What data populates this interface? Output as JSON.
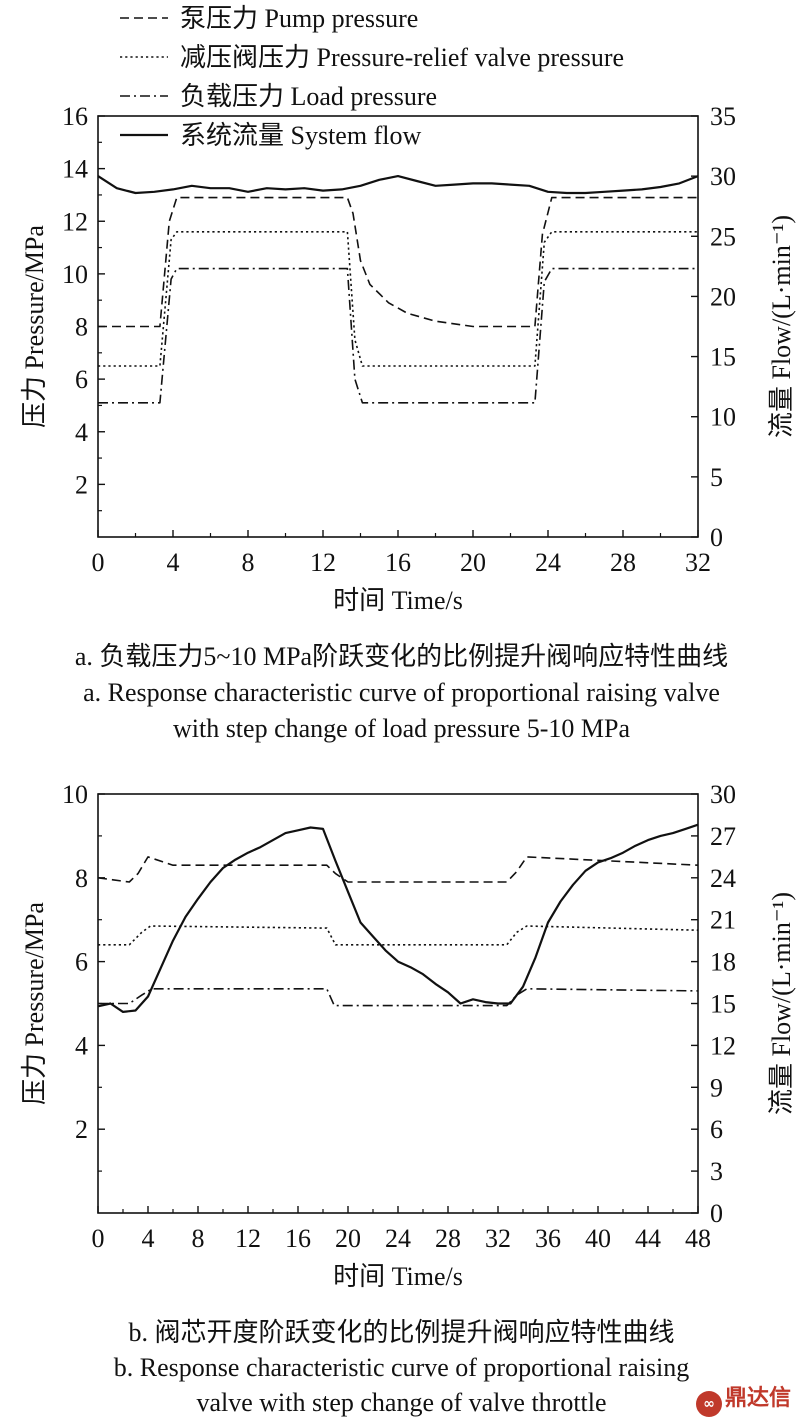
{
  "charts": [
    {
      "caption_cn": "a. 负载压力5~10 MPa阶跃变化的比例提升阀响应特性曲线",
      "caption_en_1": "a. Response characteristic curve of proportional raising valve",
      "caption_en_2": "with step change of load pressure 5-10 MPa"
    },
    {
      "caption_cn": "b. 阀芯开度阶跃变化的比例提升阀响应特性曲线",
      "caption_en_1": "b. Response characteristic curve of proportional raising",
      "caption_en_2": "valve with step change of valve throttle"
    }
  ],
  "watermark": "鼎达信",
  "chart_data": [
    {
      "type": "line",
      "xlabel": "时间 Time/s",
      "ylabel": "压力 Pressure/MPa",
      "y2label": "流量 Flow/(L·min⁻¹)",
      "xlim": [
        0,
        32
      ],
      "ylim": [
        0,
        16
      ],
      "y2lim": [
        0,
        35
      ],
      "xticks": [
        "0",
        "4",
        "8",
        "12",
        "16",
        "20",
        "24",
        "28",
        "32"
      ],
      "yticks": [
        "2",
        "4",
        "6",
        "8",
        "10",
        "12",
        "14",
        "16"
      ],
      "y2ticks": [
        "0",
        "5",
        "10",
        "15",
        "20",
        "25",
        "30",
        "35"
      ],
      "legend_position": "top-left, above plot",
      "series": [
        {
          "name": "泵压力 Pump pressure",
          "style": "dashed",
          "axis": "left",
          "x": [
            0,
            3.3,
            3.8,
            4.2,
            13.3,
            13.6,
            14.0,
            14.5,
            15.5,
            16.5,
            18,
            20,
            23.3,
            23.7,
            24.2,
            32
          ],
          "y": [
            8.0,
            8.0,
            12.0,
            12.9,
            12.9,
            12.3,
            10.5,
            9.6,
            8.9,
            8.5,
            8.2,
            8.0,
            8.0,
            11.5,
            12.9,
            12.9
          ]
        },
        {
          "name": "减压阀压力 Pressure-relief valve pressure",
          "style": "dotted",
          "axis": "left",
          "x": [
            0,
            3.3,
            3.9,
            4.2,
            13.3,
            13.7,
            14.1,
            23.3,
            23.8,
            24.2,
            32
          ],
          "y": [
            6.5,
            6.5,
            11.3,
            11.6,
            11.6,
            7.5,
            6.5,
            6.5,
            11.2,
            11.6,
            11.6
          ]
        },
        {
          "name": "负载压力 Load pressure",
          "style": "dashdot",
          "axis": "left",
          "x": [
            0,
            3.3,
            3.9,
            4.2,
            13.3,
            13.7,
            14.1,
            23.3,
            23.8,
            24.2,
            32
          ],
          "y": [
            5.1,
            5.1,
            9.8,
            10.2,
            10.2,
            6.0,
            5.1,
            5.1,
            9.7,
            10.2,
            10.2
          ]
        },
        {
          "name": "系统流量 System flow",
          "style": "solid",
          "axis": "right",
          "x": [
            0,
            1,
            2,
            3,
            4,
            5,
            6,
            7,
            8,
            9,
            10,
            11,
            12,
            13,
            14,
            15,
            16,
            17,
            18,
            19,
            20,
            21,
            22,
            23,
            24,
            25,
            26,
            27,
            28,
            29,
            30,
            31,
            32
          ],
          "y": [
            30.0,
            29.0,
            28.6,
            28.7,
            28.9,
            29.2,
            29.0,
            29.0,
            28.7,
            29.0,
            28.9,
            29.0,
            28.8,
            28.9,
            29.2,
            29.7,
            30.0,
            29.6,
            29.2,
            29.3,
            29.4,
            29.4,
            29.3,
            29.2,
            28.7,
            28.6,
            28.6,
            28.7,
            28.8,
            28.9,
            29.1,
            29.4,
            30.0
          ]
        }
      ]
    },
    {
      "type": "line",
      "xlabel": "时间 Time/s",
      "ylabel": "压力 Pressure/MPa",
      "y2label": "流量 Flow/(L·min⁻¹)",
      "xlim": [
        0,
        48
      ],
      "ylim": [
        0,
        10
      ],
      "y2lim": [
        0,
        30
      ],
      "xticks": [
        "0",
        "4",
        "8",
        "12",
        "16",
        "20",
        "24",
        "28",
        "32",
        "36",
        "40",
        "44",
        "48"
      ],
      "yticks": [
        "2",
        "4",
        "6",
        "8",
        "10"
      ],
      "y2ticks": [
        "0",
        "3",
        "6",
        "9",
        "12",
        "15",
        "18",
        "21",
        "24",
        "27",
        "30"
      ],
      "series": [
        {
          "name": "泵压力 Pump pressure",
          "style": "dashed",
          "axis": "left",
          "x": [
            0,
            2.5,
            3.2,
            4.0,
            6,
            18.3,
            19.0,
            20.0,
            32.7,
            33.5,
            34.3,
            48
          ],
          "y": [
            8.0,
            7.9,
            8.1,
            8.5,
            8.3,
            8.3,
            8.1,
            7.9,
            7.9,
            8.15,
            8.5,
            8.3
          ]
        },
        {
          "name": "减压阀压力 Pressure-relief valve pressure",
          "style": "dotted",
          "axis": "left",
          "x": [
            0,
            2.5,
            3.5,
            4.2,
            18.3,
            19.0,
            32.7,
            33.5,
            34.3,
            48
          ],
          "y": [
            6.4,
            6.4,
            6.7,
            6.85,
            6.8,
            6.4,
            6.4,
            6.7,
            6.85,
            6.75
          ]
        },
        {
          "name": "负载压力 Load pressure",
          "style": "dashdot",
          "axis": "left",
          "x": [
            0,
            2.5,
            3.5,
            4.3,
            18.3,
            18.9,
            32.7,
            33.5,
            34.3,
            48
          ],
          "y": [
            5.0,
            5.0,
            5.2,
            5.35,
            5.35,
            4.95,
            4.95,
            5.2,
            5.35,
            5.3
          ]
        },
        {
          "name": "系统流量 System flow",
          "style": "solid",
          "axis": "right",
          "x": [
            0,
            1,
            2,
            3,
            4,
            5,
            6,
            7,
            8,
            9,
            10,
            11,
            12,
            13,
            14,
            15,
            16,
            17,
            18,
            19,
            20,
            21,
            22,
            23,
            24,
            25,
            26,
            27,
            28,
            29,
            30,
            31,
            32,
            33,
            34,
            35,
            36,
            37,
            38,
            39,
            40,
            41,
            42,
            43,
            44,
            45,
            46,
            47,
            48
          ],
          "y": [
            14.8,
            15.0,
            14.4,
            14.5,
            15.5,
            17.5,
            19.5,
            21.2,
            22.5,
            23.7,
            24.7,
            25.3,
            25.8,
            26.2,
            26.7,
            27.2,
            27.4,
            27.6,
            27.5,
            25.2,
            23.0,
            20.8,
            19.8,
            18.8,
            18.0,
            17.6,
            17.1,
            16.4,
            15.8,
            15.0,
            15.3,
            15.1,
            15.0,
            15.0,
            16.2,
            18.3,
            20.8,
            22.3,
            23.5,
            24.5,
            25.1,
            25.4,
            25.8,
            26.3,
            26.7,
            27.0,
            27.2,
            27.5,
            27.8
          ]
        }
      ]
    }
  ]
}
